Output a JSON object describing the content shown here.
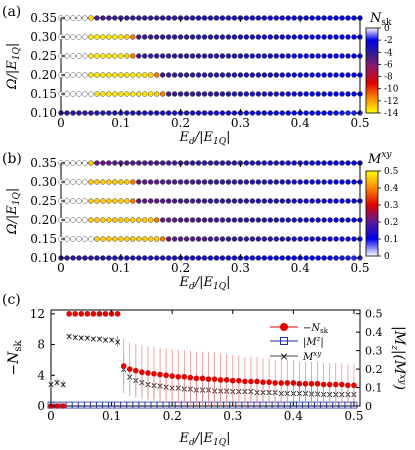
{
  "panels": [
    {
      "tag": "(a)",
      "type": "scatter",
      "ylabel": "Ω/|E_1Q|",
      "xlabel": "E_d/|E_1Q|",
      "x_ticks": [
        "0",
        "0.1",
        "0.2",
        "0.3",
        "0.4",
        "0.5"
      ],
      "y_ticks": [
        "0.10",
        "0.15",
        "0.20",
        "0.25",
        "0.30",
        "0.35"
      ],
      "xlim": [
        0,
        0.5
      ],
      "ylim": [
        0.1,
        0.35
      ],
      "colorbar": {
        "label": "N_sk",
        "ticks": [
          "0",
          "-2",
          "-4",
          "-6",
          "-8",
          "-10",
          "-12",
          "-14"
        ],
        "range": [
          -14,
          0
        ],
        "colors": [
          "#ffff00",
          "#ff8800",
          "#e00000",
          "#8a1a6a",
          "#2a1a9a",
          "#0000ee",
          "#ffffff"
        ]
      }
    },
    {
      "tag": "(b)",
      "type": "scatter",
      "ylabel": "Ω/|E_1Q|",
      "xlabel": "E_d/|E_1Q|",
      "x_ticks": [
        "0",
        "0.1",
        "0.2",
        "0.3",
        "0.4",
        "0.5"
      ],
      "y_ticks": [
        "0.10",
        "0.15",
        "0.20",
        "0.25",
        "0.30",
        "0.35"
      ],
      "xlim": [
        0,
        0.5
      ],
      "ylim": [
        0.1,
        0.35
      ],
      "colorbar": {
        "label": "M^xy",
        "ticks": [
          "0.5",
          "0.4",
          "0.3",
          "0.2",
          "0.1",
          "0"
        ],
        "range": [
          0,
          0.5
        ],
        "colors": [
          "#ffffff",
          "#0000ee",
          "#e00000",
          "#ff8800",
          "#ffff00"
        ]
      }
    },
    {
      "tag": "(c)",
      "type": "line",
      "ylabel_left": "−N_sk",
      "ylabel_right": "|M^z|(M^xy)",
      "xlabel": "E_d/|E_1Q|",
      "x_ticks": [
        "0",
        "0.1",
        "0.2",
        "0.3",
        "0.4",
        "0.5"
      ],
      "y_ticks_left": [
        "0",
        "4",
        "8",
        "12"
      ],
      "y_ticks_right": [
        "0",
        "0.1",
        "0.2",
        "0.3",
        "0.4",
        "0.5"
      ],
      "xlim": [
        0,
        0.51
      ],
      "ylim_left": [
        0,
        12.5
      ],
      "ylim_right": [
        0,
        0.52
      ],
      "legend": [
        "−N_sk",
        "|M^z|",
        "M^xy"
      ],
      "legend_position": "top-right",
      "colors": {
        "nsk": "#e00000",
        "mz": "#2233aa",
        "mxy": "#444444"
      }
    }
  ],
  "chart_data": [
    {
      "type": "scatter",
      "panel": "(a)",
      "xlabel": "E_d/|E_1Q|",
      "ylabel": "Ω/|E_1Q|",
      "x_range": [
        0,
        0.5
      ],
      "x_step": 0.01,
      "y": [
        0.1,
        0.15,
        0.2,
        0.25,
        0.3,
        0.35
      ],
      "value_name": "N_sk",
      "rows": [
        {
          "y": 0.1,
          "open_until": 0.0,
          "yellow_until": 0.0,
          "orange_until": 0.0,
          "mid": -3,
          "tail": -1.5
        },
        {
          "y": 0.15,
          "open_until": 0.05,
          "yellow_until": 0.16,
          "orange_until": 0.17,
          "mid": -3,
          "tail": -1.5
        },
        {
          "y": 0.2,
          "open_until": 0.04,
          "yellow_until": 0.15,
          "orange_until": 0.16,
          "mid": -3,
          "tail": -1.5
        },
        {
          "y": 0.25,
          "open_until": 0.04,
          "yellow_until": 0.11,
          "orange_until": 0.12,
          "mid": -3,
          "tail": -1.5
        },
        {
          "y": 0.3,
          "open_until": 0.04,
          "yellow_until": 0.11,
          "orange_until": 0.12,
          "mid": -3,
          "tail": -1.5
        },
        {
          "y": 0.35,
          "open_until": 0.04,
          "yellow_until": 0.05,
          "orange_until": 0.05,
          "mid": -2,
          "tail": -1
        }
      ],
      "core_value": -12,
      "edge_value": -9
    },
    {
      "type": "scatter",
      "panel": "(b)",
      "xlabel": "E_d/|E_1Q|",
      "ylabel": "Ω/|E_1Q|",
      "x_range": [
        0,
        0.5
      ],
      "x_step": 0.01,
      "y": [
        0.1,
        0.15,
        0.2,
        0.25,
        0.3,
        0.35
      ],
      "value_name": "M^xy",
      "rows": [
        {
          "y": 0.1,
          "open_until": 0.0,
          "yellow_until": 0.0,
          "orange_until": 0.0,
          "mid": 0.12,
          "tail": 0.08
        },
        {
          "y": 0.15,
          "open_until": 0.05,
          "yellow_until": 0.16,
          "orange_until": 0.17,
          "mid": 0.12,
          "tail": 0.08
        },
        {
          "y": 0.2,
          "open_until": 0.04,
          "yellow_until": 0.15,
          "orange_until": 0.16,
          "mid": 0.12,
          "tail": 0.08
        },
        {
          "y": 0.25,
          "open_until": 0.04,
          "yellow_until": 0.11,
          "orange_until": 0.12,
          "mid": 0.12,
          "tail": 0.08
        },
        {
          "y": 0.3,
          "open_until": 0.04,
          "yellow_until": 0.11,
          "orange_until": 0.12,
          "mid": 0.12,
          "tail": 0.08
        },
        {
          "y": 0.35,
          "open_until": 0.04,
          "yellow_until": 0.05,
          "orange_until": 0.05,
          "mid": 0.1,
          "tail": 0.06
        }
      ],
      "core_value": 0.38,
      "edge_value": 0.32
    },
    {
      "type": "line",
      "panel": "(c)",
      "xlabel": "E_d/|E_1Q|",
      "ylabel_left": "−N_sk",
      "ylabel_right": "|M^z|(M^xy)",
      "series": [
        {
          "name": "−N_sk",
          "axis": "left",
          "x": [
            0.0,
            0.01,
            0.02,
            0.03,
            0.04,
            0.05,
            0.06,
            0.07,
            0.08,
            0.09,
            0.1,
            0.11,
            0.12,
            0.13,
            0.14,
            0.15,
            0.16,
            0.17,
            0.18,
            0.19,
            0.2,
            0.21,
            0.22,
            0.23,
            0.24,
            0.25,
            0.26,
            0.27,
            0.28,
            0.29,
            0.3,
            0.31,
            0.32,
            0.33,
            0.34,
            0.35,
            0.36,
            0.37,
            0.38,
            0.39,
            0.4,
            0.41,
            0.42,
            0.43,
            0.44,
            0.45,
            0.46,
            0.47,
            0.48,
            0.49,
            0.5
          ],
          "y": [
            0,
            0,
            0,
            12,
            12,
            12,
            12,
            12,
            12,
            12,
            12,
            12,
            5.2,
            4.8,
            4.6,
            4.4,
            4.3,
            4.2,
            4.1,
            4.0,
            3.9,
            3.8,
            3.8,
            3.7,
            3.6,
            3.6,
            3.5,
            3.5,
            3.4,
            3.4,
            3.3,
            3.3,
            3.2,
            3.2,
            3.2,
            3.1,
            3.1,
            3.0,
            3.0,
            3.0,
            3.0,
            2.9,
            2.9,
            2.9,
            2.9,
            2.8,
            2.8,
            2.8,
            2.8,
            2.7,
            2.7
          ],
          "err": [
            0,
            0,
            0,
            0,
            0,
            0,
            0,
            0,
            0,
            0,
            0,
            0,
            3.5,
            3.5,
            3.5,
            3.5,
            3.5,
            3.5,
            3.5,
            3.5,
            3.5,
            3.5,
            3.5,
            3.5,
            3.5,
            3.5,
            3.5,
            3.5,
            3.4,
            3.4,
            3.3,
            3.3,
            3.2,
            3.2,
            3.2,
            3.1,
            3.1,
            3.0,
            3.0,
            3.0,
            3.0,
            2.9,
            2.9,
            2.9,
            2.9,
            2.8,
            2.8,
            2.8,
            2.8,
            2.7,
            2.7
          ]
        },
        {
          "name": "|M^z|",
          "axis": "right",
          "x": [
            0.0,
            0.01,
            0.02,
            0.03,
            0.04,
            0.05,
            0.06,
            0.07,
            0.08,
            0.09,
            0.1,
            0.11,
            0.12,
            0.13,
            0.14,
            0.15,
            0.16,
            0.17,
            0.18,
            0.19,
            0.2,
            0.21,
            0.22,
            0.23,
            0.24,
            0.25,
            0.26,
            0.27,
            0.28,
            0.29,
            0.3,
            0.31,
            0.32,
            0.33,
            0.34,
            0.35,
            0.36,
            0.37,
            0.38,
            0.39,
            0.4,
            0.41,
            0.42,
            0.43,
            0.44,
            0.45,
            0.46,
            0.47,
            0.48,
            0.49,
            0.5
          ],
          "y": [
            0.005,
            0.005,
            0.005,
            0.005,
            0.005,
            0.005,
            0.005,
            0.005,
            0.005,
            0.005,
            0.005,
            0.005,
            0.005,
            0.005,
            0.005,
            0.005,
            0.005,
            0.005,
            0.005,
            0.005,
            0.005,
            0.005,
            0.005,
            0.005,
            0.005,
            0.005,
            0.005,
            0.005,
            0.005,
            0.005,
            0.005,
            0.005,
            0.005,
            0.005,
            0.005,
            0.005,
            0.005,
            0.005,
            0.005,
            0.005,
            0.005,
            0.005,
            0.005,
            0.005,
            0.005,
            0.005,
            0.005,
            0.005,
            0.005,
            0.005,
            0.005
          ]
        },
        {
          "name": "M^xy",
          "axis": "right",
          "x": [
            0.0,
            0.01,
            0.02,
            0.03,
            0.04,
            0.05,
            0.06,
            0.07,
            0.08,
            0.09,
            0.1,
            0.11,
            0.12,
            0.13,
            0.14,
            0.15,
            0.16,
            0.17,
            0.18,
            0.19,
            0.2,
            0.21,
            0.22,
            0.23,
            0.24,
            0.25,
            0.26,
            0.27,
            0.28,
            0.29,
            0.3,
            0.31,
            0.32,
            0.33,
            0.34,
            0.35,
            0.36,
            0.37,
            0.38,
            0.39,
            0.4,
            0.41,
            0.42,
            0.43,
            0.44,
            0.45,
            0.46,
            0.47,
            0.48,
            0.49,
            0.5
          ],
          "y": [
            0.12,
            0.13,
            0.12,
            0.38,
            0.375,
            0.37,
            0.37,
            0.365,
            0.365,
            0.36,
            0.36,
            0.35,
            0.2,
            0.16,
            0.14,
            0.13,
            0.12,
            0.115,
            0.11,
            0.105,
            0.1,
            0.1,
            0.095,
            0.095,
            0.09,
            0.09,
            0.09,
            0.085,
            0.085,
            0.085,
            0.08,
            0.08,
            0.08,
            0.08,
            0.075,
            0.075,
            0.075,
            0.075,
            0.07,
            0.07,
            0.07,
            0.07,
            0.07,
            0.068,
            0.068,
            0.066,
            0.066,
            0.065,
            0.065,
            0.064,
            0.064
          ],
          "err": [
            0.02,
            0.02,
            0.02,
            0.01,
            0.01,
            0.01,
            0.01,
            0.01,
            0.01,
            0.01,
            0.01,
            0.03,
            0.08,
            0.08,
            0.08,
            0.075,
            0.07,
            0.07,
            0.07,
            0.065,
            0.065,
            0.06,
            0.06,
            0.06,
            0.06,
            0.055,
            0.055,
            0.055,
            0.055,
            0.05,
            0.05,
            0.05,
            0.05,
            0.05,
            0.05,
            0.05,
            0.05,
            0.045,
            0.045,
            0.045,
            0.045,
            0.045,
            0.045,
            0.045,
            0.045,
            0.04,
            0.04,
            0.04,
            0.04,
            0.04,
            0.04
          ]
        }
      ],
      "x_range": [
        0,
        0.51
      ],
      "ylim_left": [
        0,
        12.5
      ],
      "ylim_right": [
        0,
        0.52
      ],
      "legend_position": "top-right"
    }
  ]
}
